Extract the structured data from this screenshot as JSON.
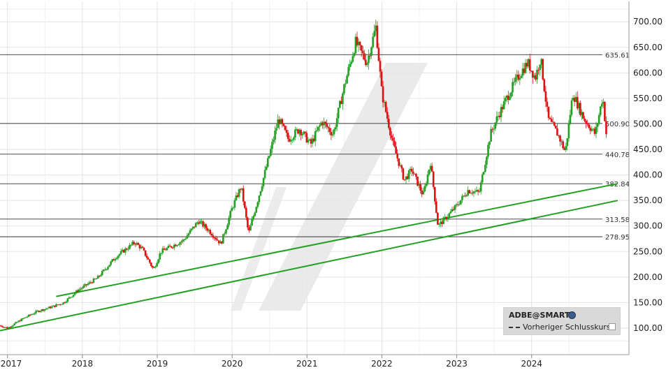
{
  "chart_data": {
    "type": "candlestick",
    "title": "",
    "xlabel": "",
    "ylabel": "",
    "x_tick_labels": [
      "2017",
      "2018",
      "2019",
      "2020",
      "2021",
      "2022",
      "2023",
      "2024"
    ],
    "y_tick_values": [
      100,
      150,
      200,
      250,
      300,
      350,
      400,
      450,
      500,
      550,
      600,
      650,
      700
    ],
    "y_tick_labels": [
      "100.00",
      "150.00",
      "200.00",
      "250.00",
      "300.00",
      "350.00",
      "400.00",
      "450.00",
      "500.00",
      "550.00",
      "600.00",
      "650.00",
      "700.00"
    ],
    "ylim": [
      48,
      740
    ],
    "xlim": [
      2016.9,
      2025.3
    ],
    "grid": true,
    "legend_position": "bottom-right",
    "up_color": "#22a022",
    "down_color": "#dd1111",
    "horizontal_levels": [
      {
        "value": 635.61,
        "label": "635.61"
      },
      {
        "value": 500.9,
        "label": "500.90"
      },
      {
        "value": 440.78,
        "label": "440.78"
      },
      {
        "value": 382.84,
        "label": "382.84"
      },
      {
        "value": 313.58,
        "label": "313.58"
      },
      {
        "value": 278.95,
        "label": "278.95"
      }
    ],
    "trend_lines": [
      {
        "from": [
          2016.9,
          95
        ],
        "to": [
          2025.15,
          350
        ],
        "color": "#22a022"
      },
      {
        "from": [
          2017.65,
          162
        ],
        "to": [
          2025.15,
          383
        ],
        "color": "#22a022"
      }
    ],
    "price_path": [
      [
        2016.9,
        105
      ],
      [
        2017.0,
        100
      ],
      [
        2017.2,
        118
      ],
      [
        2017.4,
        133
      ],
      [
        2017.6,
        142
      ],
      [
        2017.75,
        150
      ],
      [
        2017.95,
        175
      ],
      [
        2018.2,
        198
      ],
      [
        2018.45,
        240
      ],
      [
        2018.7,
        268
      ],
      [
        2018.8,
        255
      ],
      [
        2018.95,
        215
      ],
      [
        2019.05,
        250
      ],
      [
        2019.35,
        272
      ],
      [
        2019.55,
        310
      ],
      [
        2019.7,
        290
      ],
      [
        2019.85,
        265
      ],
      [
        2020.0,
        335
      ],
      [
        2020.12,
        378
      ],
      [
        2020.22,
        285
      ],
      [
        2020.35,
        355
      ],
      [
        2020.5,
        440
      ],
      [
        2020.62,
        510
      ],
      [
        2020.75,
        470
      ],
      [
        2020.9,
        490
      ],
      [
        2021.05,
        460
      ],
      [
        2021.2,
        505
      ],
      [
        2021.35,
        480
      ],
      [
        2021.5,
        575
      ],
      [
        2021.65,
        660
      ],
      [
        2021.8,
        620
      ],
      [
        2021.92,
        690
      ],
      [
        2022.0,
        560
      ],
      [
        2022.15,
        460
      ],
      [
        2022.3,
        390
      ],
      [
        2022.4,
        410
      ],
      [
        2022.55,
        360
      ],
      [
        2022.65,
        425
      ],
      [
        2022.75,
        300
      ],
      [
        2022.85,
        315
      ],
      [
        2023.0,
        340
      ],
      [
        2023.15,
        370
      ],
      [
        2023.3,
        365
      ],
      [
        2023.45,
        480
      ],
      [
        2023.55,
        515
      ],
      [
        2023.7,
        560
      ],
      [
        2023.85,
        600
      ],
      [
        2023.95,
        620
      ],
      [
        2024.05,
        590
      ],
      [
        2024.12,
        630
      ],
      [
        2024.22,
        510
      ],
      [
        2024.35,
        480
      ],
      [
        2024.45,
        445
      ],
      [
        2024.55,
        560
      ],
      [
        2024.7,
        510
      ],
      [
        2024.85,
        480
      ],
      [
        2024.95,
        555
      ],
      [
        2025.0,
        475
      ]
    ]
  },
  "legend": {
    "symbol": "ADBE@SMART",
    "previous_close_label": "Vorheriger Schlusskurs"
  }
}
